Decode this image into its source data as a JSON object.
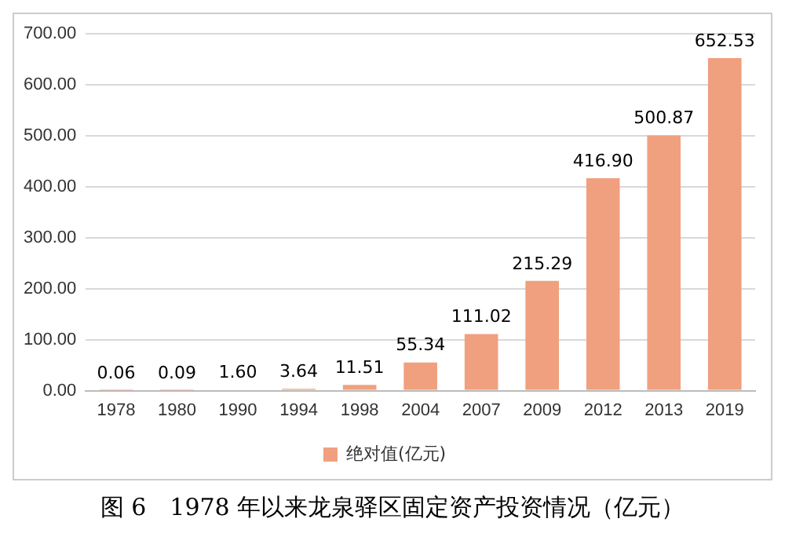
{
  "chart_data": {
    "type": "bar",
    "title": "图 6　1978 年以来龙泉驿区固定资产投资情况（亿元）",
    "categories": [
      "1978",
      "1980",
      "1990",
      "1994",
      "1998",
      "2004",
      "2007",
      "2009",
      "2012",
      "2013",
      "2019"
    ],
    "series": [
      {
        "name": "绝对值(亿元)",
        "color": "#f0a07e",
        "values": [
          0.06,
          0.09,
          1.6,
          3.64,
          11.51,
          55.34,
          111.02,
          215.29,
          416.9,
          500.87,
          652.53
        ],
        "value_labels": [
          "0.06",
          "0.09",
          "1.60",
          "3.64",
          "11.51",
          "55.34",
          "111.02",
          "215.29",
          "416.90",
          "500.87",
          "652.53"
        ]
      }
    ],
    "ylim": [
      0,
      700
    ],
    "yticks": [
      {
        "value": 0,
        "label": "0.00"
      },
      {
        "value": 100,
        "label": "100.00"
      },
      {
        "value": 200,
        "label": "200.00"
      },
      {
        "value": 300,
        "label": "300.00"
      },
      {
        "value": 400,
        "label": "400.00"
      },
      {
        "value": 500,
        "label": "500.00"
      },
      {
        "value": 600,
        "label": "600.00"
      },
      {
        "value": 700,
        "label": "700.00"
      }
    ],
    "grid": "y",
    "legend": "bottom"
  }
}
